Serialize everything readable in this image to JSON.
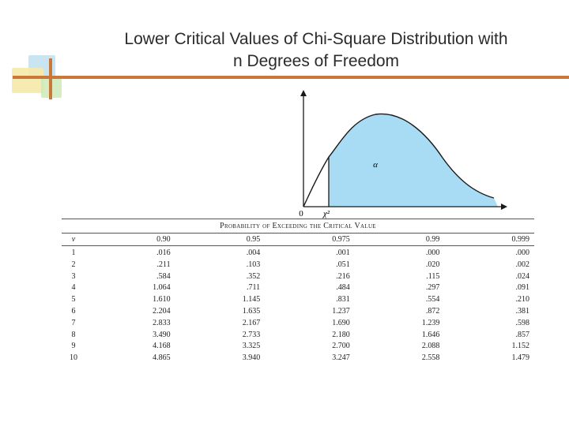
{
  "title": {
    "line1": "Lower Critical Values of Chi-Square Distribution with",
    "line2": "n Degrees of Freedom"
  },
  "figure": {
    "origin_label": "0",
    "critical_label": "χ²",
    "area_label": "α",
    "fill_color": "#a8dcf4"
  },
  "table": {
    "caption": "Probability of Exceeding the Critical Value",
    "headers": [
      "ν",
      "0.90",
      "0.95",
      "0.975",
      "0.99",
      "0.999"
    ],
    "rows": [
      [
        "1",
        ".016",
        ".004",
        ".001",
        ".000",
        ".000"
      ],
      [
        "2",
        ".211",
        ".103",
        ".051",
        ".020",
        ".002"
      ],
      [
        "3",
        ".584",
        ".352",
        ".216",
        ".115",
        ".024"
      ],
      [
        "4",
        "1.064",
        ".711",
        ".484",
        ".297",
        ".091"
      ],
      [
        "5",
        "1.610",
        "1.145",
        ".831",
        ".554",
        ".210"
      ],
      [
        "6",
        "2.204",
        "1.635",
        "1.237",
        ".872",
        ".381"
      ],
      [
        "7",
        "2.833",
        "2.167",
        "1.690",
        "1.239",
        ".598"
      ],
      [
        "8",
        "3.490",
        "2.733",
        "2.180",
        "1.646",
        ".857"
      ],
      [
        "9",
        "4.168",
        "3.325",
        "2.700",
        "2.088",
        "1.152"
      ],
      [
        "10",
        "4.865",
        "3.940",
        "3.247",
        "2.558",
        "1.479"
      ]
    ]
  }
}
